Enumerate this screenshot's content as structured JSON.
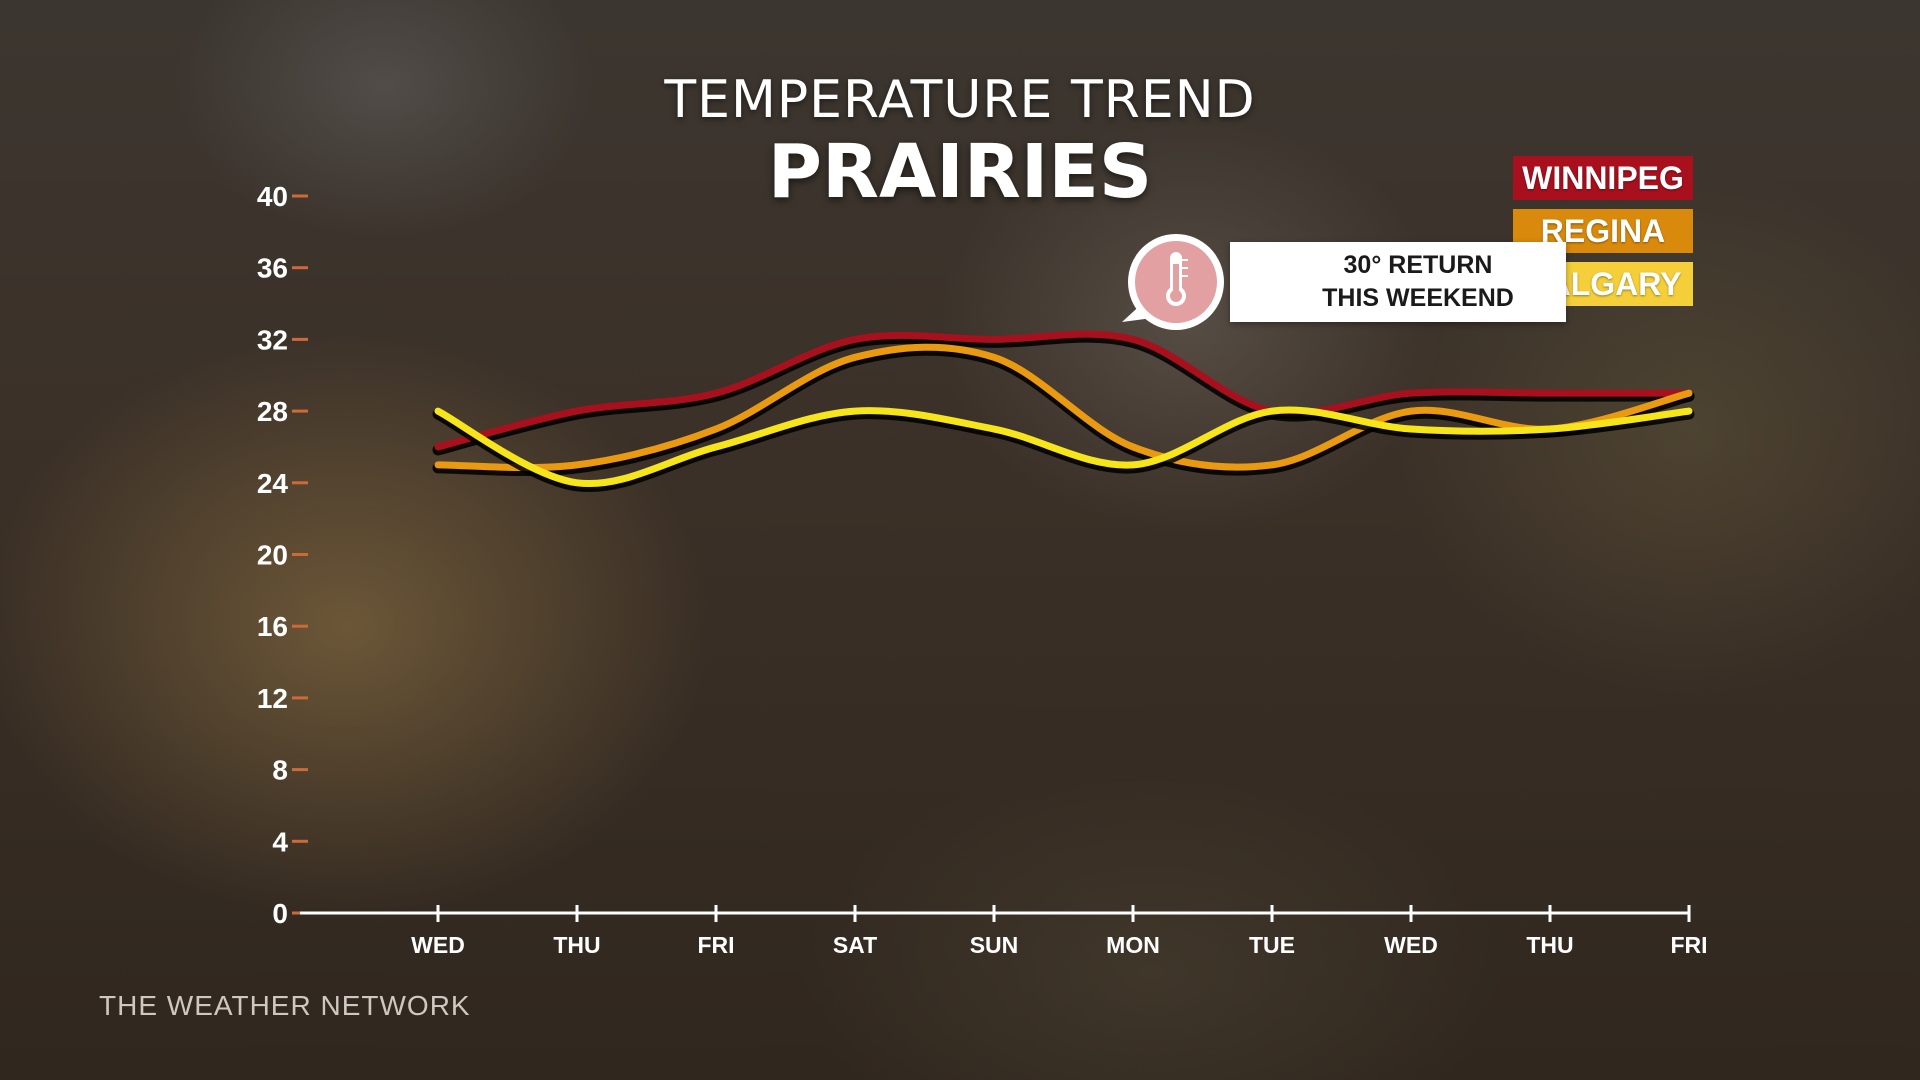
{
  "colors": {
    "winnipeg": "#a8101e",
    "regina": "#ea9a10",
    "calgary": "#f5e51a",
    "axis": "#ffffff",
    "callout_icon": "#e2a0a2"
  },
  "header": {
    "title": "TEMPERATURE TREND",
    "subtitle": "PRAIRIES"
  },
  "legend": [
    {
      "label": "WINNIPEG",
      "color": "#a8101e"
    },
    {
      "label": "REGINA",
      "color": "#d98a0c"
    },
    {
      "label": "CALGARY",
      "color": "#f4cf3a"
    }
  ],
  "callout": {
    "icon": "thermometer-icon",
    "line1": "30° RETURN",
    "line2": "THIS WEEKEND"
  },
  "footer": {
    "brand": "THE WEATHER NETWORK"
  },
  "chart_data": {
    "type": "line",
    "title": "TEMPERATURE TREND",
    "subtitle": "PRAIRIES",
    "xlabel": "",
    "ylabel": "",
    "categories": [
      "WED",
      "THU",
      "FRI",
      "SAT",
      "SUN",
      "MON",
      "TUE",
      "WED",
      "THU",
      "FRI"
    ],
    "ylim": [
      0,
      40
    ],
    "yticks": [
      0,
      4,
      8,
      12,
      16,
      20,
      24,
      28,
      32,
      36,
      40
    ],
    "grid": false,
    "legend_position": "top-right",
    "series": [
      {
        "name": "WINNIPEG",
        "color": "#a8101e",
        "values": [
          26,
          28,
          29,
          32,
          32,
          32,
          28,
          29,
          29,
          29
        ]
      },
      {
        "name": "REGINA",
        "color": "#ea9a10",
        "values": [
          25,
          25,
          27,
          31,
          31,
          26,
          25,
          28,
          27,
          29
        ]
      },
      {
        "name": "CALGARY",
        "color": "#f5e51a",
        "values": [
          28,
          24,
          26,
          28,
          27,
          25,
          28,
          27,
          27,
          28
        ]
      }
    ]
  }
}
